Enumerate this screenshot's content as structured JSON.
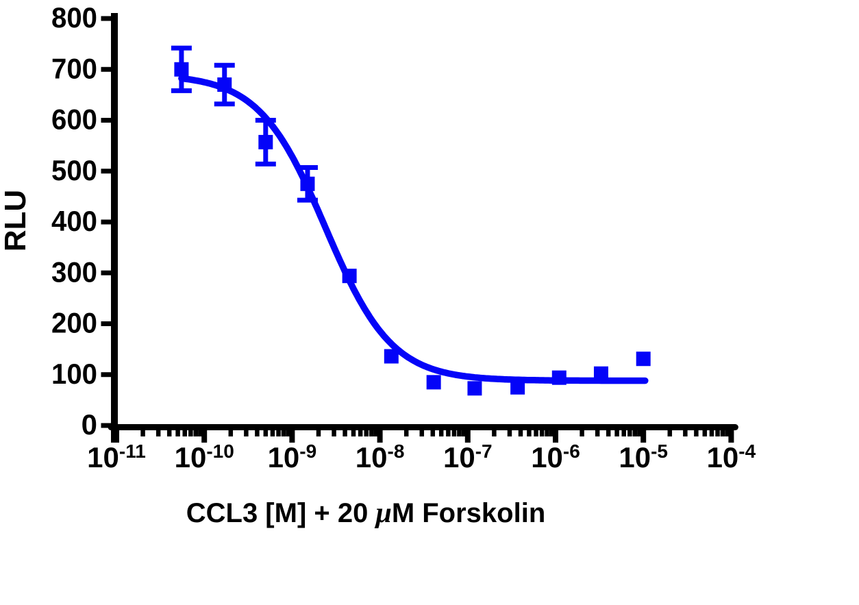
{
  "figure": {
    "background_color": "#ffffff",
    "axis_color": "#000000",
    "series_color": "#0404f8"
  },
  "chart_data": {
    "type": "scatter",
    "subtype": "dose-response inhibition curve with sigmoidal fit",
    "title": "",
    "xlabel": "CCL3 [M] + 20 μM Forskolin",
    "xlabel_parts": [
      {
        "text": "CCL3 [M] + 20 ",
        "style": "normal"
      },
      {
        "text": "μ",
        "style": "greek-italic"
      },
      {
        "text": "M Forskolin",
        "style": "normal"
      }
    ],
    "ylabel": "RLU",
    "x_scale": "log10",
    "x_unit": "M",
    "xlim_exponents": [
      -11,
      -4
    ],
    "x_ticks": [
      {
        "base": "10",
        "exponent": "-11"
      },
      {
        "base": "10",
        "exponent": "-10"
      },
      {
        "base": "10",
        "exponent": "-9"
      },
      {
        "base": "10",
        "exponent": "-8"
      },
      {
        "base": "10",
        "exponent": "-7"
      },
      {
        "base": "10",
        "exponent": "-6"
      },
      {
        "base": "10",
        "exponent": "-5"
      },
      {
        "base": "10",
        "exponent": "-4"
      }
    ],
    "x_minor_ticks": "log decade minors (2-9) between every labeled decade",
    "ylim": [
      0,
      800
    ],
    "y_ticks": [
      0,
      100,
      200,
      300,
      400,
      500,
      600,
      700,
      800
    ],
    "grid": false,
    "legend": "none",
    "series": [
      {
        "name": "CCL3 + 20 uM Forskolin",
        "marker": "filled-square",
        "color": "#0404f8",
        "error_bar_style": "capped, shown where larger than symbol",
        "points": [
          {
            "conc_M": 5.5e-11,
            "rlu": 700,
            "error": 42
          },
          {
            "conc_M": 1.7e-10,
            "rlu": 670,
            "error": 38
          },
          {
            "conc_M": 5e-10,
            "rlu": 557,
            "error": 43
          },
          {
            "conc_M": 1.5e-09,
            "rlu": 475,
            "error": 32
          },
          {
            "conc_M": 4.5e-09,
            "rlu": 294,
            "error": 0
          },
          {
            "conc_M": 1.35e-08,
            "rlu": 136,
            "error": 0
          },
          {
            "conc_M": 4.1e-08,
            "rlu": 85,
            "error": 0
          },
          {
            "conc_M": 1.2e-07,
            "rlu": 73,
            "error": 0
          },
          {
            "conc_M": 3.7e-07,
            "rlu": 75,
            "error": 0
          },
          {
            "conc_M": 1.1e-06,
            "rlu": 94,
            "error": 0
          },
          {
            "conc_M": 3.3e-06,
            "rlu": 102,
            "error": 0
          },
          {
            "conc_M": 1e-05,
            "rlu": 131,
            "error": 0
          }
        ],
        "fit_curve": {
          "model": "four-parameter logistic (inhibition)",
          "top_rlu": 690,
          "bottom_rlu": 88,
          "log10_ic50": -8.62,
          "hill_slope": 1.15,
          "log10_x_start": -10.26,
          "log10_x_end": -4.98
        }
      }
    ]
  }
}
